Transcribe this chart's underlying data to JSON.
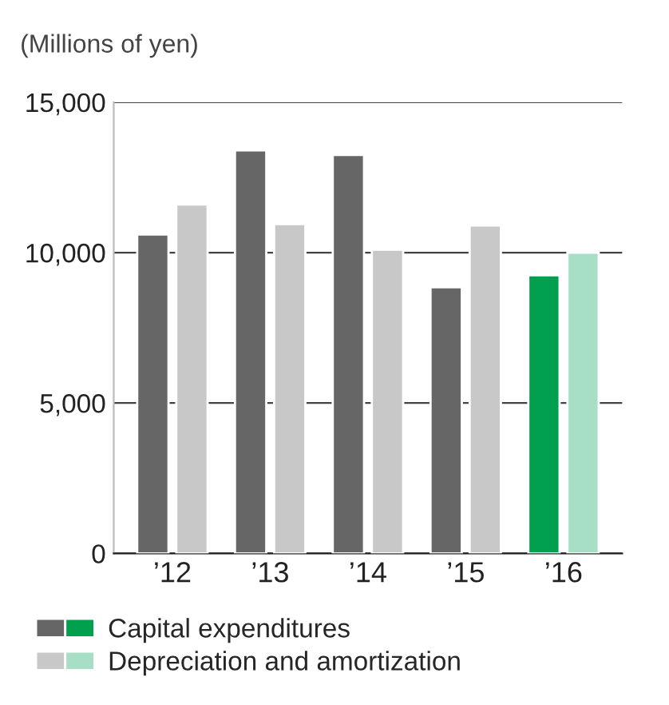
{
  "chart_data": {
    "type": "bar",
    "ylabel": "(Millions of yen)",
    "categories": [
      "’12",
      "’13",
      "’14",
      "’15",
      "’16"
    ],
    "series": [
      {
        "name": "Capital expenditures",
        "colors": [
          "#666666",
          "#666666",
          "#666666",
          "#666666",
          "#00a04f"
        ],
        "values": [
          10600,
          13400,
          13250,
          8850,
          9250
        ]
      },
      {
        "name": "Depreciation and amortization",
        "colors": [
          "#c8c8c8",
          "#c8c8c8",
          "#c8c8c8",
          "#c8c8c8",
          "#a6dfc6"
        ],
        "values": [
          11600,
          10950,
          10100,
          10900,
          10000
        ]
      }
    ],
    "ylim": [
      0,
      15000
    ],
    "yticks": [
      0,
      {
        "value": 5000,
        "label": "5,000"
      },
      {
        "value": 10000,
        "label": "10,000"
      },
      {
        "value": 15000,
        "label": "15,000"
      }
    ],
    "grid": "y",
    "legend": "bottom"
  }
}
